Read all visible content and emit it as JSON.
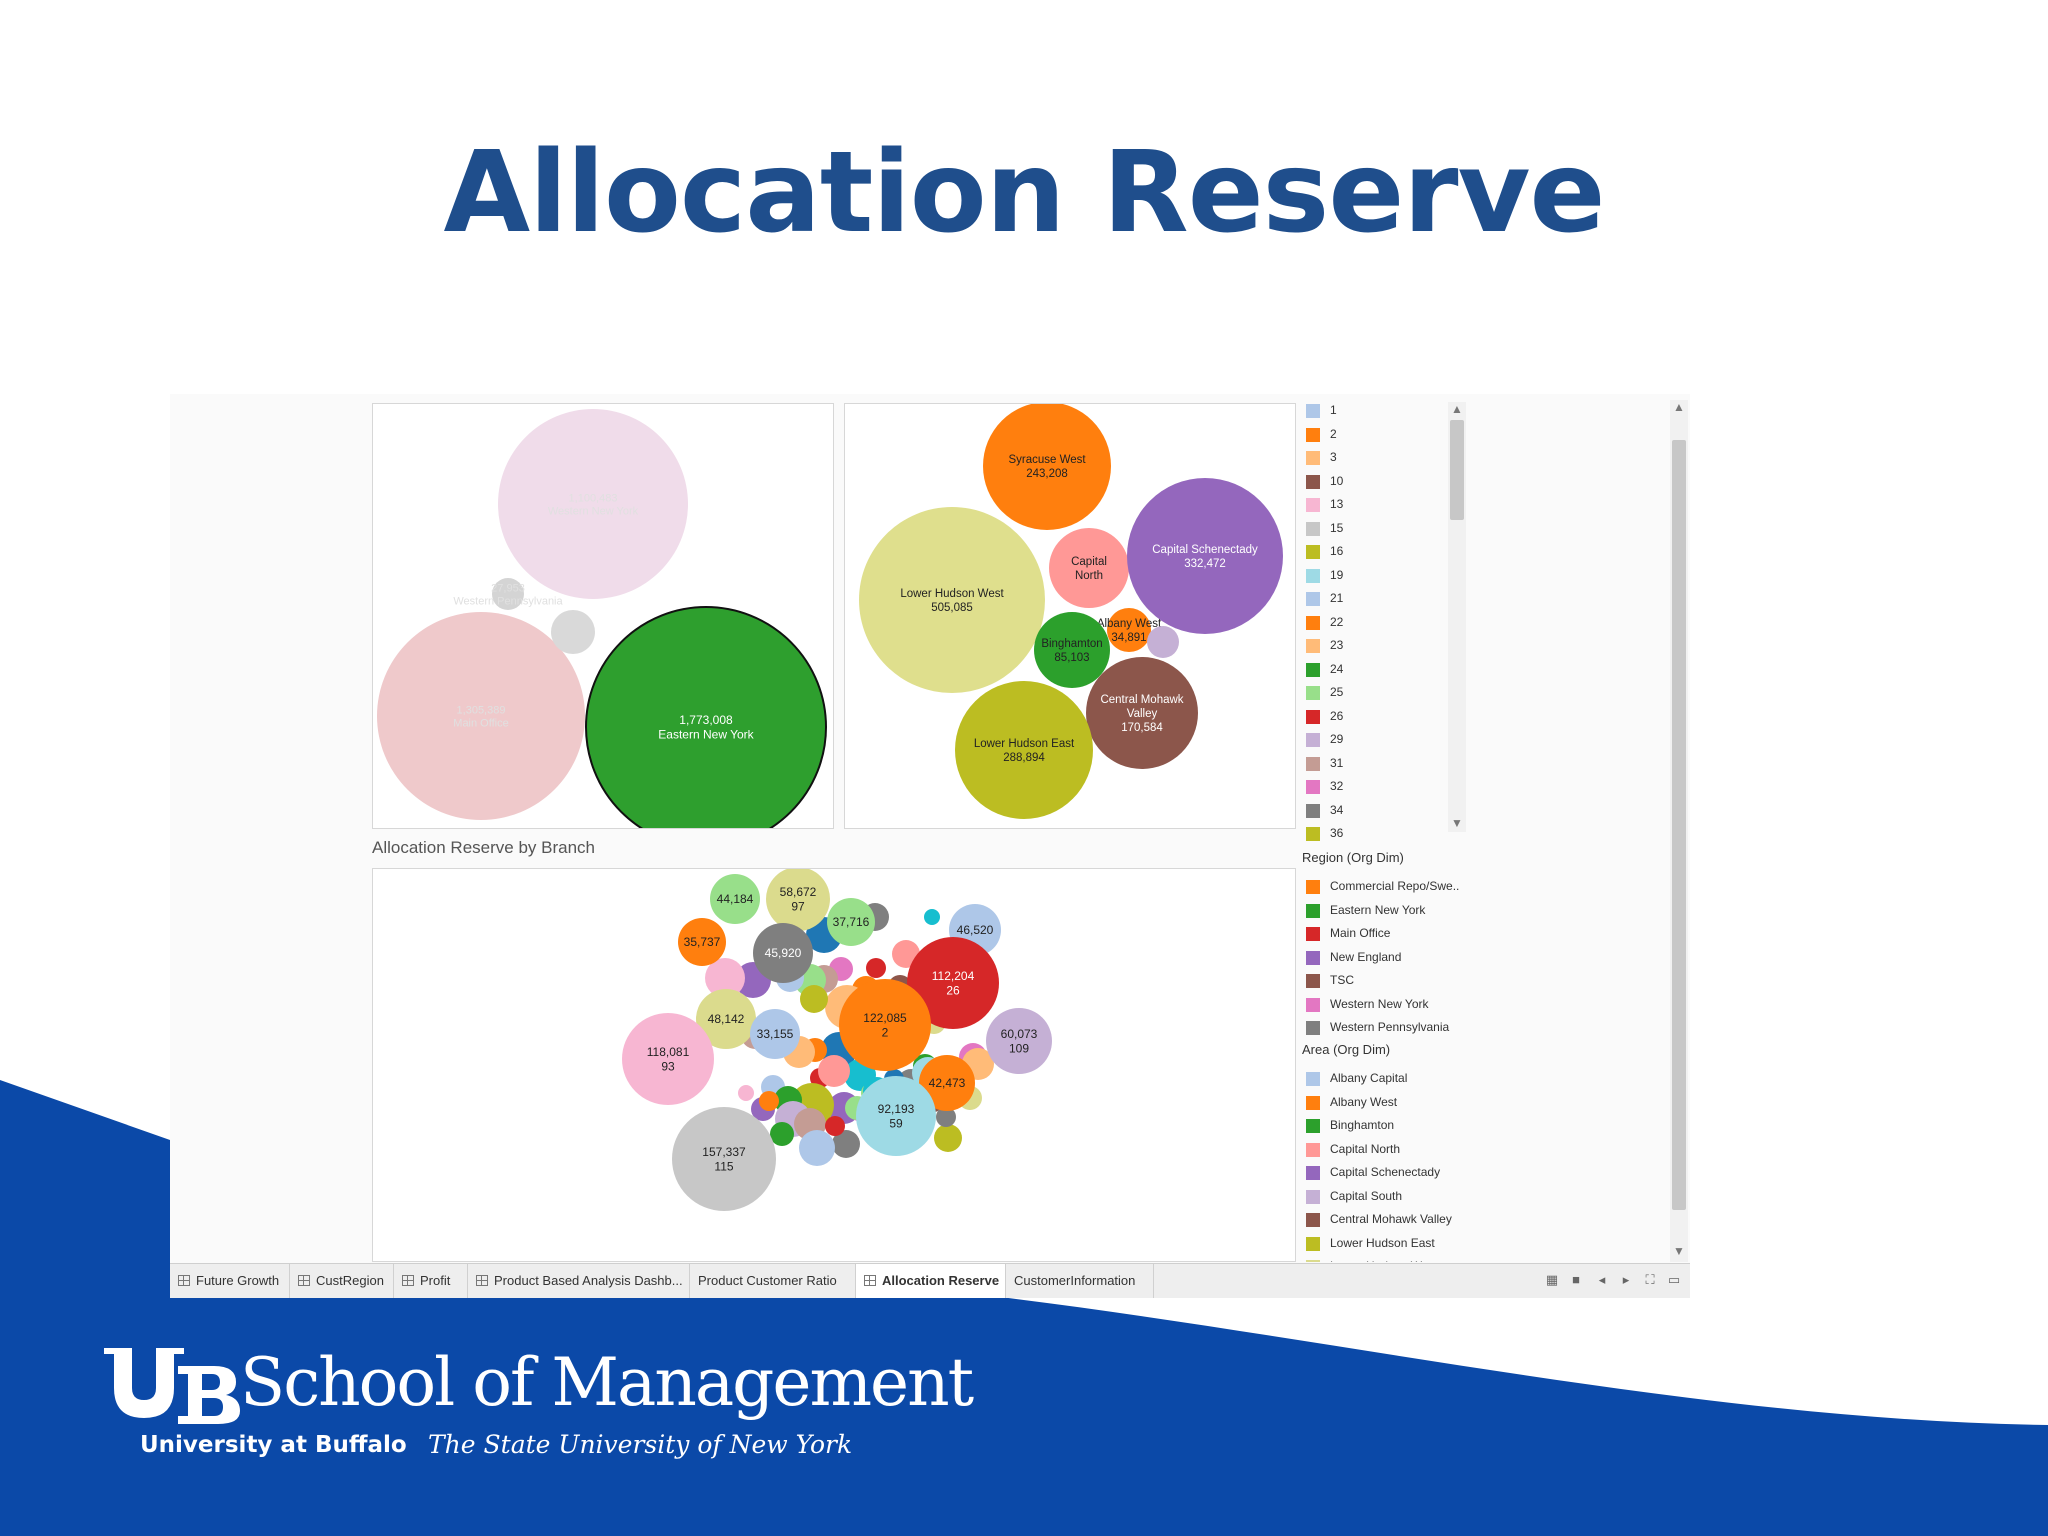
{
  "slide": {
    "title": "Allocation Reserve"
  },
  "colors": {
    "brand_blue": "#0b49a8",
    "title_blue": "#1f4e8c"
  },
  "panels": {
    "branch_title": "Allocation Reserve by Branch"
  },
  "chart_data": [
    {
      "type": "bubble",
      "title": "",
      "series": [
        {
          "name": "Western New York",
          "value": "1,100,483",
          "color": "#f0dcea",
          "faded": true
        },
        {
          "name": "Western Pennsylvania",
          "value": "27,953",
          "color": "#d4d4d4",
          "faded": true
        },
        {
          "name": "Main Office",
          "value": "1,305,389",
          "color": "#efc9cb",
          "faded": true
        },
        {
          "name": "",
          "value": "",
          "color": "#d9d9d9",
          "faded": true
        },
        {
          "name": "Eastern New York",
          "value": "1,773,008",
          "color": "#2e9f2e",
          "faded": false
        }
      ]
    },
    {
      "type": "bubble",
      "title": "",
      "series": [
        {
          "name": "Syracuse West",
          "value": "243,208",
          "color": "#ff7f0e"
        },
        {
          "name": "Lower Hudson West",
          "value": "505,085",
          "color": "#dfdf8d"
        },
        {
          "name": "Capital North",
          "value": "",
          "color": "#ff9896"
        },
        {
          "name": "Capital Schenectady",
          "value": "332,472",
          "color": "#9467bd"
        },
        {
          "name": "Albany West",
          "value": "34,891",
          "color": "#ff7f0e"
        },
        {
          "name": "Binghamton",
          "value": "85,103",
          "color": "#2ca02c"
        },
        {
          "name": "",
          "value": "",
          "color": "#c5b0d5"
        },
        {
          "name": "Central Mohawk Valley",
          "value": "170,584",
          "color": "#8c564b"
        },
        {
          "name": "Lower Hudson East",
          "value": "288,894",
          "color": "#bcbd22"
        }
      ]
    },
    {
      "type": "bubble",
      "title": "Allocation Reserve by Branch",
      "labeled": [
        {
          "value": "44,184",
          "branch": "",
          "color": "#98df8a"
        },
        {
          "value": "58,672",
          "branch": "97",
          "color": "#dbdb8d"
        },
        {
          "value": "37,716",
          "branch": "",
          "color": "#98df8a"
        },
        {
          "value": "46,520",
          "branch": "",
          "color": "#aec7e8"
        },
        {
          "value": "35,737",
          "branch": "",
          "color": "#ff7f0e"
        },
        {
          "value": "45,920",
          "branch": "",
          "color": "#7f7f7f"
        },
        {
          "value": "112,204",
          "branch": "26",
          "color": "#d62728"
        },
        {
          "value": "48,142",
          "branch": "",
          "color": "#dbdb8d"
        },
        {
          "value": "33,155",
          "branch": "",
          "color": "#aec7e8"
        },
        {
          "value": "122,085",
          "branch": "2",
          "color": "#ff7f0e"
        },
        {
          "value": "60,073",
          "branch": "109",
          "color": "#c5b0d5"
        },
        {
          "value": "118,081",
          "branch": "93",
          "color": "#f7b6d2"
        },
        {
          "value": "42,473",
          "branch": "",
          "color": "#ff7f0e"
        },
        {
          "value": "92,193",
          "branch": "59",
          "color": "#9edae5"
        },
        {
          "value": "157,337",
          "branch": "115",
          "color": "#c7c7c7"
        }
      ],
      "unlabeled_colors": [
        "#7f7f7f",
        "#17becf",
        "#1f77b4",
        "#ff9896",
        "#e377c2",
        "#d62728",
        "#c49c94",
        "#ff7f0e",
        "#2ca02c",
        "#ffbb78",
        "#98df8a",
        "#8c564b",
        "#9467bd",
        "#bcbd22",
        "#c7c7c7",
        "#c5b0d5",
        "#f7b6d2",
        "#aec7e8",
        "#dbdb8d",
        "#9edae5",
        "#e377c2",
        "#1f77b4",
        "#2ca02c",
        "#ff7f0e",
        "#8c564b",
        "#7f7f7f",
        "#ffbb78",
        "#17becf",
        "#c49c94",
        "#d62728",
        "#9467bd",
        "#bcbd22",
        "#98df8a",
        "#aec7e8",
        "#ff9896",
        "#2ca02c",
        "#c5b0d5",
        "#e377c2",
        "#7f7f7f",
        "#1f77b4",
        "#ffbb78",
        "#dbdb8d",
        "#8c564b",
        "#17becf",
        "#9467bd",
        "#c49c94",
        "#2ca02c",
        "#ff7f0e",
        "#f7b6d2",
        "#d62728",
        "#aec7e8",
        "#bcbd22",
        "#7f7f7f",
        "#98df8a",
        "#9edae5"
      ]
    }
  ],
  "legend_numbers": [
    {
      "label": "1",
      "color": "#aec7e8"
    },
    {
      "label": "2",
      "color": "#ff7f0e"
    },
    {
      "label": "3",
      "color": "#ffbb78"
    },
    {
      "label": "10",
      "color": "#8c564b"
    },
    {
      "label": "13",
      "color": "#f7b6d2"
    },
    {
      "label": "15",
      "color": "#c7c7c7"
    },
    {
      "label": "16",
      "color": "#bcbd22"
    },
    {
      "label": "19",
      "color": "#9edae5"
    },
    {
      "label": "21",
      "color": "#aec7e8"
    },
    {
      "label": "22",
      "color": "#ff7f0e"
    },
    {
      "label": "23",
      "color": "#ffbb78"
    },
    {
      "label": "24",
      "color": "#2ca02c"
    },
    {
      "label": "25",
      "color": "#98df8a"
    },
    {
      "label": "26",
      "color": "#d62728"
    },
    {
      "label": "29",
      "color": "#c5b0d5"
    },
    {
      "label": "31",
      "color": "#c49c94"
    },
    {
      "label": "32",
      "color": "#e377c2"
    },
    {
      "label": "34",
      "color": "#7f7f7f"
    },
    {
      "label": "36",
      "color": "#bcbd22"
    }
  ],
  "legend_region": {
    "title": "Region (Org Dim)",
    "items": [
      {
        "label": "Commercial Repo/Swe..",
        "color": "#ff7f0e"
      },
      {
        "label": "Eastern New York",
        "color": "#2ca02c"
      },
      {
        "label": "Main Office",
        "color": "#d62728"
      },
      {
        "label": "New England",
        "color": "#9467bd"
      },
      {
        "label": "TSC",
        "color": "#8c564b"
      },
      {
        "label": "Western New York",
        "color": "#e377c2"
      },
      {
        "label": "Western Pennsylvania",
        "color": "#7f7f7f"
      }
    ]
  },
  "legend_area": {
    "title": "Area (Org Dim)",
    "items": [
      {
        "label": "Albany Capital",
        "color": "#aec7e8"
      },
      {
        "label": "Albany West",
        "color": "#ff7f0e"
      },
      {
        "label": "Binghamton",
        "color": "#2ca02c"
      },
      {
        "label": "Capital North",
        "color": "#ff9896"
      },
      {
        "label": "Capital Schenectady",
        "color": "#9467bd"
      },
      {
        "label": "Capital South",
        "color": "#c5b0d5"
      },
      {
        "label": "Central Mohawk Valley",
        "color": "#8c564b"
      },
      {
        "label": "Lower Hudson East",
        "color": "#bcbd22"
      },
      {
        "label": "Lower Hudson West",
        "color": "#dbdb8d"
      }
    ]
  },
  "tabs": [
    {
      "label": "Future Growth",
      "icon": "grid-icon",
      "active": false
    },
    {
      "label": "CustRegion",
      "icon": "grid-icon",
      "active": false
    },
    {
      "label": "Profit",
      "icon": "grid-icon",
      "active": false
    },
    {
      "label": "Product Based Analysis Dashb...",
      "icon": "grid-icon",
      "active": false
    },
    {
      "label": "Product Customer Ratio",
      "icon": "",
      "active": false
    },
    {
      "label": "Allocation Reserve",
      "icon": "grid-icon",
      "active": true
    },
    {
      "label": "CustomerInformation",
      "icon": "",
      "active": false
    }
  ],
  "footer": {
    "logo_mark": "UB",
    "school": "School of Management",
    "university": "University at Buffalo",
    "tagline": "The State University of New York"
  }
}
